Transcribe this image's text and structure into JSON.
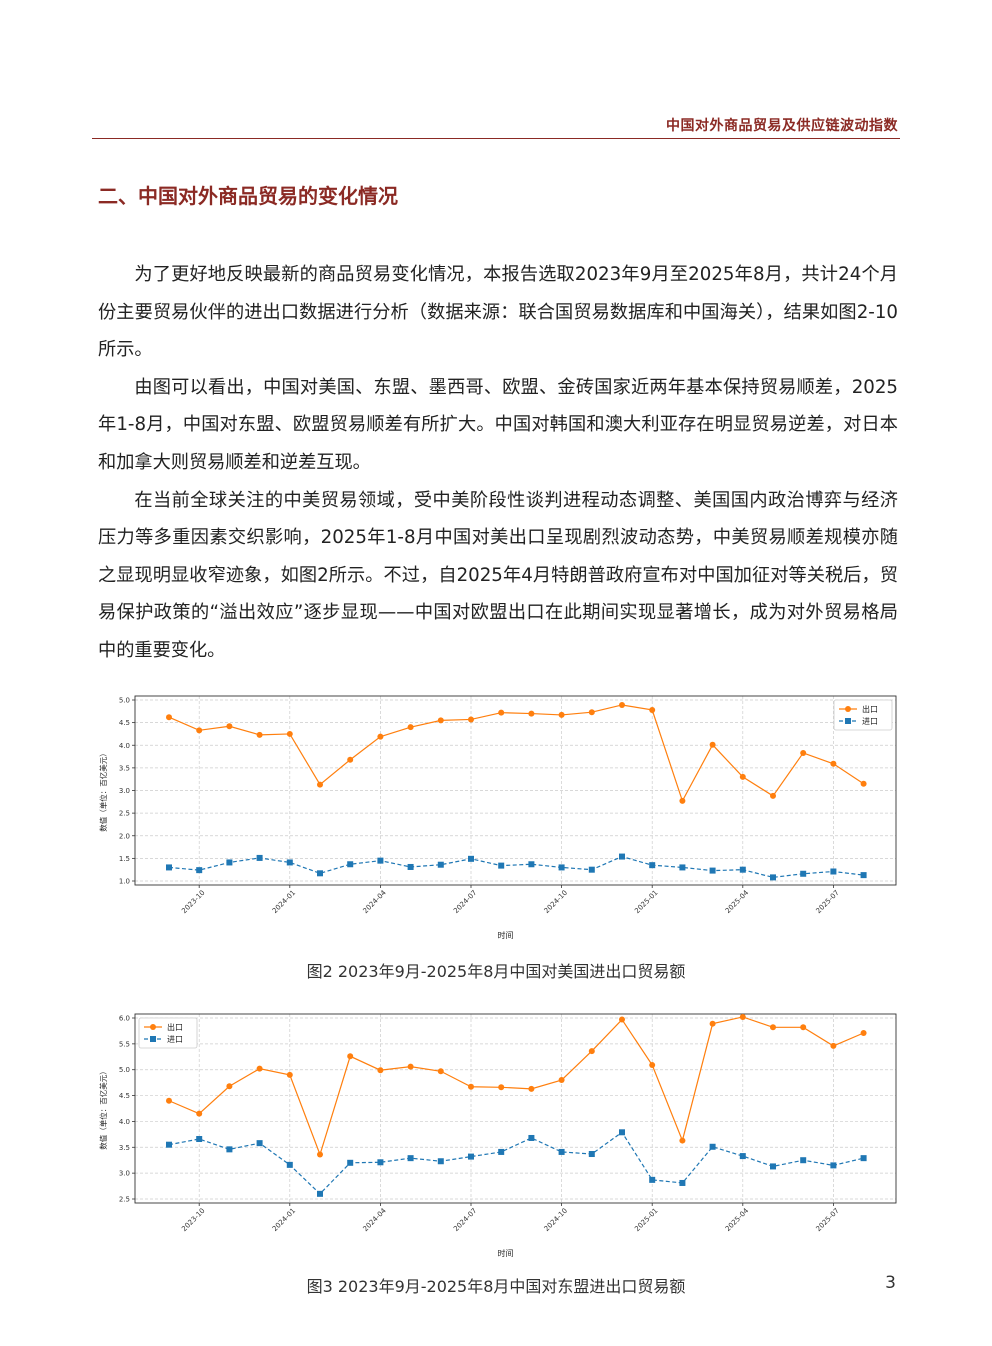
{
  "header": {
    "title": "中国对外商品贸易及供应链波动指数"
  },
  "section": {
    "heading": "二、中国对外商品贸易的变化情况"
  },
  "paragraphs": [
    "为了更好地反映最新的商品贸易变化情况，本报告选取2023年9月至2025年8月，共计24个月份主要贸易伙伴的进出口数据进行分析（数据来源：联合国贸易数据库和中国海关），结果如图2-10所示。",
    "由图可以看出，中国对美国、东盟、墨西哥、欧盟、金砖国家近两年基本保持贸易顺差，2025年1-8月，中国对东盟、欧盟贸易顺差有所扩大。中国对韩国和澳大利亚存在明显贸易逆差，对日本和加拿大则贸易顺差和逆差互现。",
    "在当前全球关注的中美贸易领域，受中美阶段性谈判进程动态调整、美国国内政治博弈与经济压力等多重因素交织影响，2025年1-8月中国对美出口呈现剧烈波动态势，中美贸易顺差规模亦随之显现明显收窄迹象，如图2所示。不过，自2025年4月特朗普政府宣布对中国加征对等关税后，贸易保护政策的“溢出效应”逐步显现——中国对欧盟出口在此期间实现显著增长，成为对外贸易格局中的重要变化。"
  ],
  "figures": [
    {
      "caption": "图2  2023年9月-2025年8月中国对美国进出口贸易额"
    },
    {
      "caption": "图3  2023年9月-2025年8月中国对东盟进出口贸易额"
    }
  ],
  "page_number": "3",
  "colors": {
    "accent": "#8b2a24",
    "export": "#ff7f0e",
    "import": "#1f77b4"
  },
  "chart_data": [
    {
      "type": "line",
      "xlabel": "时间",
      "ylabel": "数值（单位：百亿美元）",
      "x": [
        "2023-09",
        "2023-10",
        "2023-11",
        "2023-12",
        "2024-01",
        "2024-02",
        "2024-03",
        "2024-04",
        "2024-05",
        "2024-06",
        "2024-07",
        "2024-08",
        "2024-09",
        "2024-10",
        "2024-11",
        "2024-12",
        "2025-01",
        "2025-02",
        "2025-03",
        "2025-04",
        "2025-05",
        "2025-06",
        "2025-07",
        "2025-08"
      ],
      "xticks": [
        "2023-10",
        "2024-01",
        "2024-04",
        "2024-07",
        "2024-10",
        "2025-01",
        "2025-04",
        "2025-07"
      ],
      "ylim": [
        1.0,
        5.0
      ],
      "yticks": [
        1.0,
        1.5,
        2.0,
        2.5,
        3.0,
        3.5,
        4.0,
        4.5,
        5.0
      ],
      "legend_position": "top-right",
      "grid": true,
      "series": [
        {
          "name": "出口",
          "marker": "circle",
          "line": "solid",
          "values": [
            4.62,
            4.33,
            4.42,
            4.23,
            4.25,
            3.13,
            3.68,
            4.19,
            4.4,
            4.55,
            4.57,
            4.72,
            4.7,
            4.67,
            4.73,
            4.89,
            4.78,
            2.77,
            4.01,
            3.3,
            2.88,
            3.83,
            3.59,
            3.15
          ]
        },
        {
          "name": "进口",
          "marker": "square",
          "line": "dashed",
          "values": [
            1.3,
            1.24,
            1.41,
            1.51,
            1.41,
            1.17,
            1.37,
            1.45,
            1.31,
            1.36,
            1.49,
            1.34,
            1.37,
            1.3,
            1.25,
            1.54,
            1.35,
            1.3,
            1.23,
            1.25,
            1.08,
            1.16,
            1.21,
            1.13
          ]
        }
      ]
    },
    {
      "type": "line",
      "xlabel": "时间",
      "ylabel": "数值（单位：百亿美元）",
      "x": [
        "2023-09",
        "2023-10",
        "2023-11",
        "2023-12",
        "2024-01",
        "2024-02",
        "2024-03",
        "2024-04",
        "2024-05",
        "2024-06",
        "2024-07",
        "2024-08",
        "2024-09",
        "2024-10",
        "2024-11",
        "2024-12",
        "2025-01",
        "2025-02",
        "2025-03",
        "2025-04",
        "2025-05",
        "2025-06",
        "2025-07",
        "2025-08"
      ],
      "xticks": [
        "2023-10",
        "2024-01",
        "2024-04",
        "2024-07",
        "2024-10",
        "2025-01",
        "2025-04",
        "2025-07"
      ],
      "ylim": [
        2.5,
        6.0
      ],
      "yticks": [
        2.5,
        3.0,
        3.5,
        4.0,
        4.5,
        5.0,
        5.5,
        6.0
      ],
      "legend_position": "top-left",
      "grid": true,
      "series": [
        {
          "name": "出口",
          "marker": "circle",
          "line": "solid",
          "values": [
            4.4,
            4.15,
            4.68,
            5.02,
            4.9,
            3.36,
            5.26,
            4.99,
            5.06,
            4.97,
            4.67,
            4.66,
            4.63,
            4.8,
            5.36,
            5.97,
            5.09,
            3.63,
            5.89,
            6.02,
            5.82,
            5.82,
            5.46,
            5.71
          ]
        },
        {
          "name": "进口",
          "marker": "square",
          "line": "dashed",
          "values": [
            3.55,
            3.66,
            3.46,
            3.58,
            3.16,
            2.6,
            3.2,
            3.21,
            3.29,
            3.23,
            3.32,
            3.41,
            3.68,
            3.41,
            3.37,
            3.79,
            2.87,
            2.81,
            3.51,
            3.33,
            3.13,
            3.25,
            3.15,
            3.29
          ]
        }
      ]
    }
  ]
}
